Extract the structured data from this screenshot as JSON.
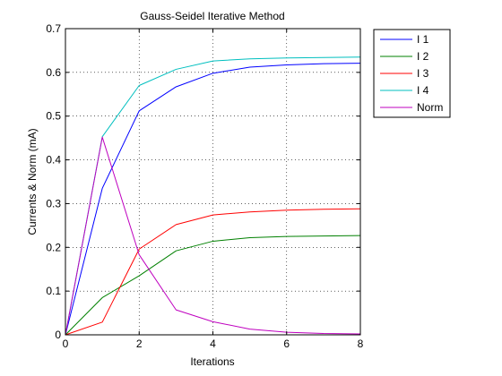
{
  "chart_data": {
    "type": "line",
    "title": "Gauss-Seidel Iterative Method",
    "xlabel": "Iterations",
    "ylabel": "Currents & Norm (mA)",
    "xlim": [
      0,
      8
    ],
    "ylim": [
      0,
      0.7
    ],
    "xticks": [
      0,
      2,
      4,
      6,
      8
    ],
    "xtick_labels": [
      "0",
      "2",
      "4",
      "6",
      "8"
    ],
    "yticks": [
      0,
      0.1,
      0.2,
      0.3,
      0.4,
      0.5,
      0.6,
      0.7
    ],
    "ytick_labels": [
      "0",
      "0.1",
      "0.2",
      "0.3",
      "0.4",
      "0.5",
      "0.6",
      "0.7"
    ],
    "grid": true,
    "legend_position": "outside-top-right",
    "x": [
      0,
      1,
      2,
      3,
      4,
      5,
      6,
      7,
      8
    ],
    "series": [
      {
        "name": "I 1",
        "color": "#0000ff",
        "values": [
          0,
          0.335,
          0.512,
          0.567,
          0.598,
          0.612,
          0.617,
          0.62,
          0.621
        ]
      },
      {
        "name": "I 2",
        "color": "#008000",
        "values": [
          0,
          0.085,
          0.135,
          0.192,
          0.214,
          0.222,
          0.225,
          0.226,
          0.227
        ]
      },
      {
        "name": "I 3",
        "color": "#ff0000",
        "values": [
          0,
          0.029,
          0.196,
          0.252,
          0.274,
          0.281,
          0.285,
          0.287,
          0.288
        ]
      },
      {
        "name": "I 4",
        "color": "#00bfbf",
        "values": [
          0,
          0.453,
          0.57,
          0.607,
          0.626,
          0.631,
          0.633,
          0.634,
          0.635
        ]
      },
      {
        "name": "Norm",
        "color": "#bf00bf",
        "values": [
          0,
          0.452,
          0.183,
          0.057,
          0.03,
          0.013,
          0.006,
          0.003,
          0.002
        ]
      }
    ]
  }
}
